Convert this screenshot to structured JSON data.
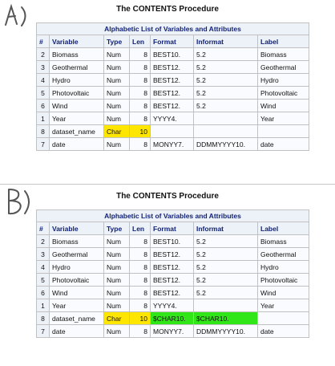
{
  "section_a": {
    "marker": "A)",
    "proc_title": "The CONTENTS Procedure",
    "table_caption": "Alphabetic List of Variables and Attributes",
    "headers": [
      "#",
      "Variable",
      "Type",
      "Len",
      "Format",
      "Informat",
      "Label"
    ],
    "rows": [
      [
        "2",
        "Biomass",
        "Num",
        "8",
        "BEST10.",
        "5.2",
        "Biomass"
      ],
      [
        "3",
        "Geothermal",
        "Num",
        "8",
        "BEST12.",
        "5.2",
        "Geothermal"
      ],
      [
        "4",
        "Hydro",
        "Num",
        "8",
        "BEST12.",
        "5.2",
        "Hydro"
      ],
      [
        "5",
        "Photovoltaic",
        "Num",
        "8",
        "BEST12.",
        "5.2",
        "Photovoltaic"
      ],
      [
        "6",
        "Wind",
        "Num",
        "8",
        "BEST12.",
        "5.2",
        "Wind"
      ],
      [
        "1",
        "Year",
        "Num",
        "8",
        "YYYY4.",
        "",
        "Year"
      ],
      [
        "8",
        "dataset_name",
        "Char",
        "10",
        "",
        "",
        ""
      ],
      [
        "7",
        "date",
        "Num",
        "8",
        "MONYY7.",
        "DDMMYYYY10.",
        "date"
      ]
    ]
  },
  "section_b": {
    "marker": "B)",
    "proc_title": "The CONTENTS Procedure",
    "table_caption": "Alphabetic List of Variables and Attributes",
    "headers": [
      "#",
      "Variable",
      "Type",
      "Len",
      "Format",
      "Informat",
      "Label"
    ],
    "rows": [
      [
        "2",
        "Biomass",
        "Num",
        "8",
        "BEST10.",
        "5.2",
        "Biomass"
      ],
      [
        "3",
        "Geothermal",
        "Num",
        "8",
        "BEST12.",
        "5.2",
        "Geothermal"
      ],
      [
        "4",
        "Hydro",
        "Num",
        "8",
        "BEST12.",
        "5.2",
        "Hydro"
      ],
      [
        "5",
        "Photovoltaic",
        "Num",
        "8",
        "BEST12.",
        "5.2",
        "Photovoltaic"
      ],
      [
        "6",
        "Wind",
        "Num",
        "8",
        "BEST12.",
        "5.2",
        "Wind"
      ],
      [
        "1",
        "Year",
        "Num",
        "8",
        "YYYY4.",
        "",
        "Year"
      ],
      [
        "8",
        "dataset_name",
        "Char",
        "10",
        "$CHAR10.",
        "$CHAR10.",
        ""
      ],
      [
        "7",
        "date",
        "Num",
        "8",
        "MONYY7.",
        "DDMMYYYY10.",
        "date"
      ]
    ]
  },
  "colors": {
    "highlight_yellow": "#ffe600",
    "highlight_green": "#31e618",
    "header_bg": "#edf2f9",
    "header_text": "#112277"
  }
}
